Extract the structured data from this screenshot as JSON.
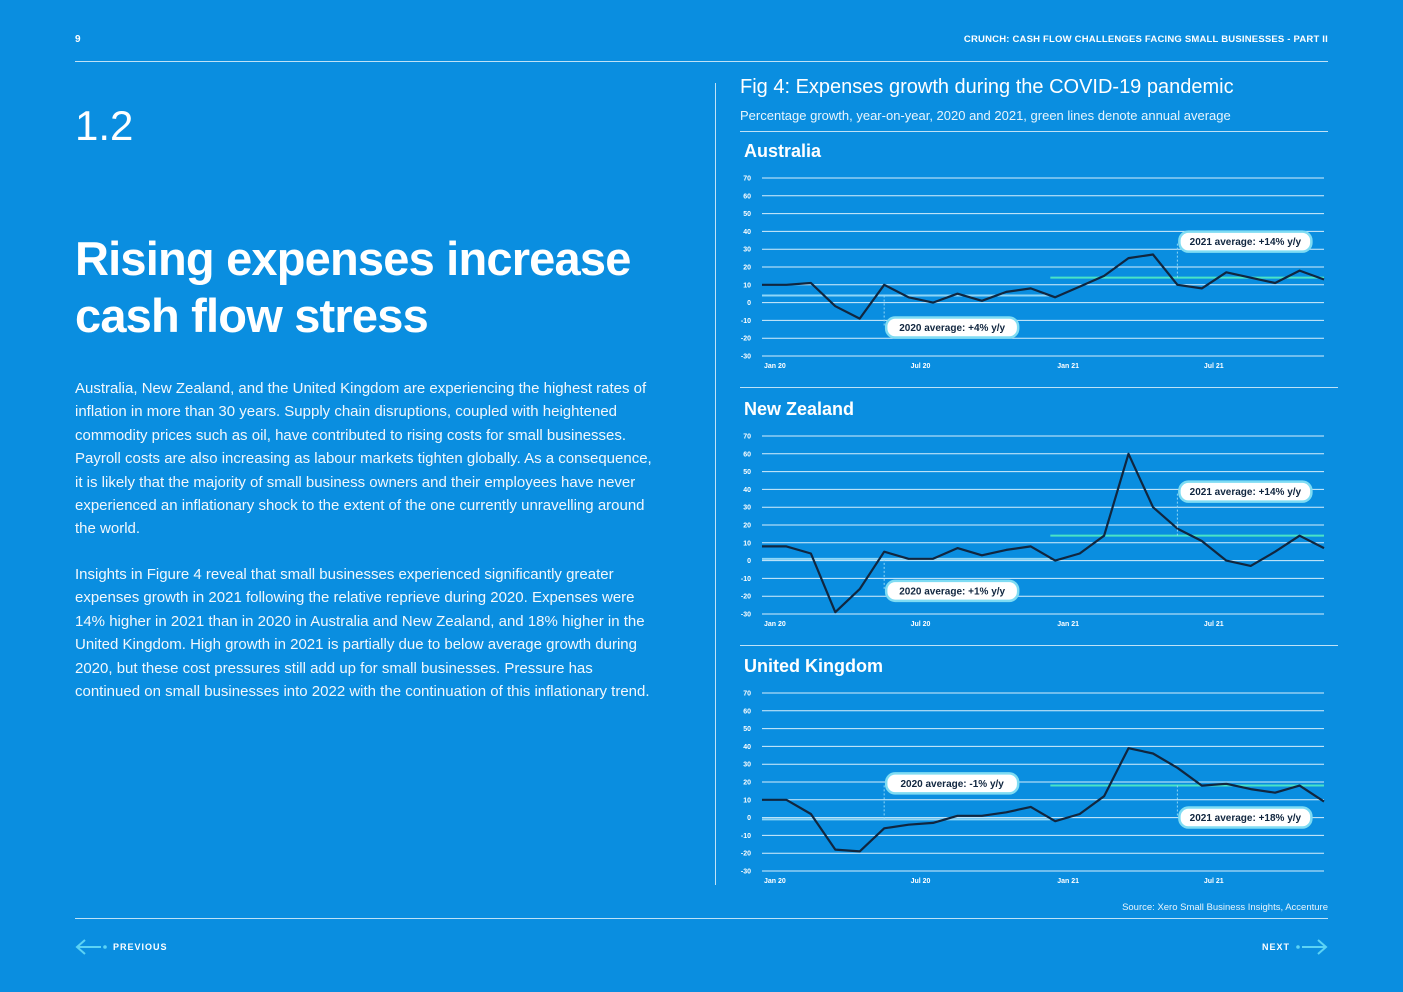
{
  "header": {
    "page_number": "9",
    "document_title": "CRUNCH: CASH FLOW CHALLENGES FACING SMALL BUSINESSES - PART II"
  },
  "section": {
    "number": "1.2",
    "headline": "Rising expenses increase cash flow stress",
    "paragraphs": [
      "Australia, New Zealand, and the United Kingdom are experiencing the highest rates of inflation in more than 30 years. Supply chain disruptions, coupled with heightened commodity prices such as oil, have contributed to rising costs for small businesses. Payroll costs are also increasing as labour markets tighten globally. As a consequence, it is likely that the majority of small business owners and their employees have never experienced an inflationary shock to the extent of the one currently unravelling around the world.",
      "Insights in Figure 4 reveal that small businesses experienced significantly greater expenses growth in 2021 following the relative reprieve during 2020. Expenses were 14% higher in 2021 than in 2020 in Australia and New Zealand, and 18% higher in the United Kingdom. High growth in 2021 is partially due to below average growth during 2020, but these cost pressures still add up for small businesses. Pressure has continued on small businesses into 2022 with the continuation of this inflationary trend."
    ]
  },
  "figure": {
    "title": "Fig 4: Expenses growth during the COVID-19 pandemic",
    "subtitle": "Percentage growth, year-on-year, 2020 and 2021, green lines denote annual average",
    "source": "Source: Xero Small Business Insights, Accenture"
  },
  "colors": {
    "background": "#0a8ee0",
    "line": "#10263f",
    "avg_2021": "#49e3c6",
    "avg_2020": "#8fd6f7",
    "gridline": "#d6eefc",
    "label_bg": "#ffffff",
    "label_border": "#7fdcf3",
    "label_text": "#10263f"
  },
  "chart_data": [
    {
      "type": "line",
      "title": "Australia",
      "ylim": [
        -30,
        70
      ],
      "yticks": [
        70,
        60,
        50,
        40,
        30,
        20,
        10,
        0,
        -10,
        -20,
        -30
      ],
      "xtick_labels": [
        "Jan 20",
        "Jul 20",
        "Jan 21",
        "Jul 21"
      ],
      "xtick_indices": [
        0,
        6,
        12,
        18
      ],
      "values": [
        10,
        10,
        11,
        -2,
        -9,
        10,
        3,
        0,
        5,
        1,
        6,
        8,
        3,
        9,
        15,
        25,
        27,
        10,
        8,
        17,
        14,
        11,
        18,
        13
      ],
      "avg_2020": 4,
      "avg_2021": 14,
      "annotations": [
        {
          "text": "2021 average: +14% y/y",
          "year": 2021
        },
        {
          "text": "2020 average: +4% y/y",
          "year": 2020
        }
      ]
    },
    {
      "type": "line",
      "title": "New Zealand",
      "ylim": [
        -30,
        70
      ],
      "yticks": [
        70,
        60,
        50,
        40,
        30,
        20,
        10,
        0,
        -10,
        -20,
        -30
      ],
      "xtick_labels": [
        "Jan 20",
        "Jul 20",
        "Jan 21",
        "Jul 21"
      ],
      "xtick_indices": [
        0,
        6,
        12,
        18
      ],
      "values": [
        8,
        8,
        4,
        -29,
        -16,
        5,
        1,
        1,
        7,
        3,
        6,
        8,
        0,
        4,
        14,
        60,
        30,
        18,
        11,
        0,
        -3,
        5,
        14,
        7
      ],
      "avg_2020": 1,
      "avg_2021": 14,
      "annotations": [
        {
          "text": "2021 average: +14% y/y",
          "year": 2021
        },
        {
          "text": "2020 average: +1% y/y",
          "year": 2020
        }
      ]
    },
    {
      "type": "line",
      "title": "United Kingdom",
      "ylim": [
        -30,
        70
      ],
      "yticks": [
        70,
        60,
        50,
        40,
        30,
        20,
        10,
        0,
        -10,
        -20,
        -30
      ],
      "xtick_labels": [
        "Jan 20",
        "Jul 20",
        "Jan 21",
        "Jul 21"
      ],
      "xtick_indices": [
        0,
        6,
        12,
        18
      ],
      "values": [
        10,
        10,
        2,
        -18,
        -19,
        -6,
        -4,
        -3,
        1,
        1,
        3,
        6,
        -2,
        2,
        12,
        39,
        36,
        28,
        18,
        19,
        16,
        14,
        18,
        9
      ],
      "avg_2020": -1,
      "avg_2021": 18,
      "annotations": [
        {
          "text": "2020 average: -1% y/y",
          "year": 2020
        },
        {
          "text": "2021 average: +18% y/y",
          "year": 2021
        }
      ]
    }
  ],
  "navigation": {
    "previous": "PREVIOUS",
    "next": "NEXT"
  }
}
